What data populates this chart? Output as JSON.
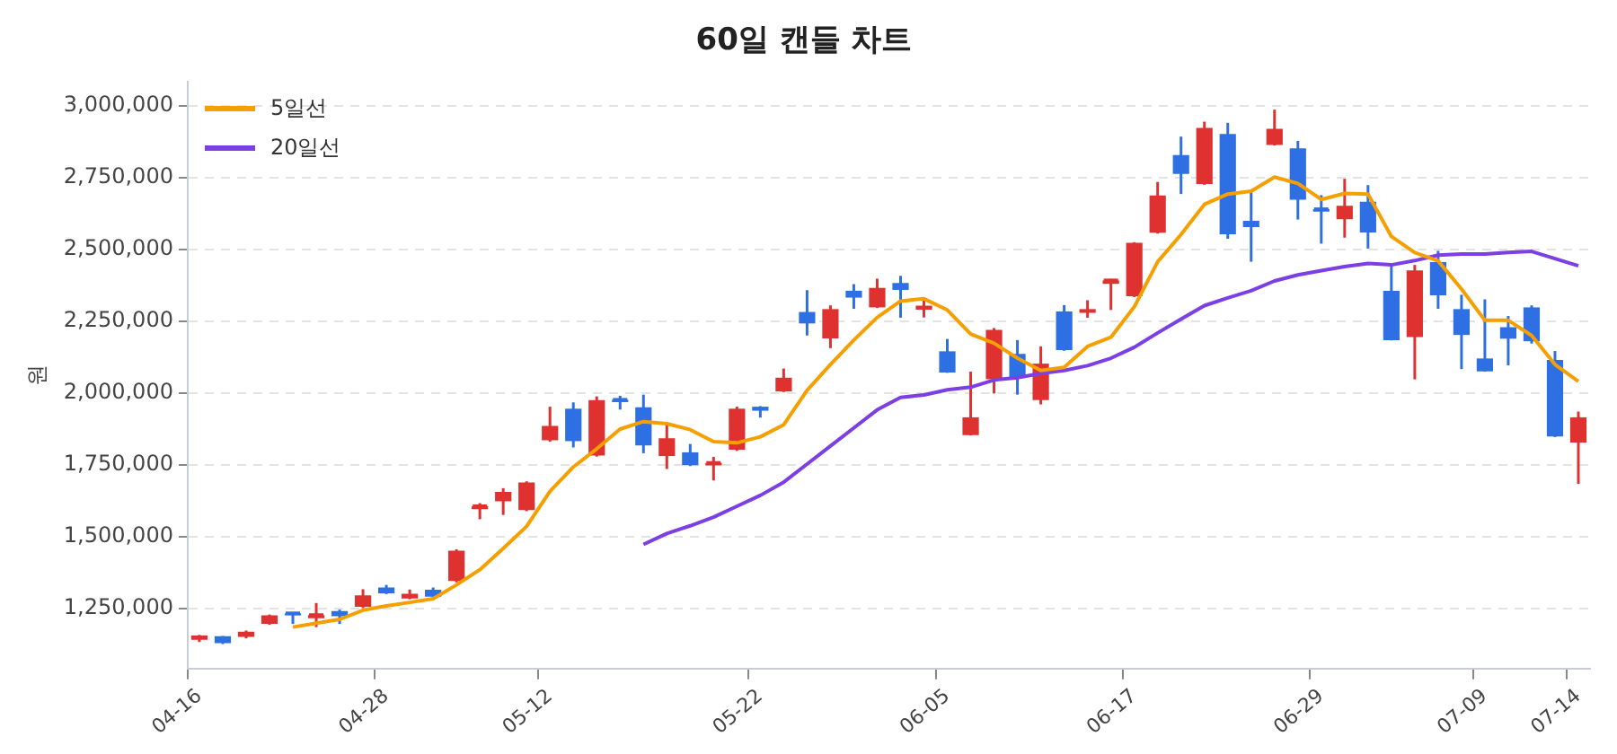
{
  "chart_data": {
    "type": "candlestick",
    "title": "60일 캔들 차트",
    "ylabel": "원",
    "categories": [
      "04-16",
      null,
      null,
      null,
      null,
      null,
      null,
      null,
      "04-28",
      null,
      null,
      null,
      null,
      null,
      null,
      "05-12",
      null,
      null,
      null,
      null,
      null,
      null,
      null,
      null,
      "05-22",
      null,
      null,
      null,
      null,
      null,
      null,
      null,
      "06-05",
      null,
      null,
      null,
      null,
      null,
      null,
      null,
      "06-17",
      null,
      null,
      null,
      null,
      null,
      null,
      null,
      "06-29",
      null,
      null,
      null,
      null,
      null,
      null,
      "07-09",
      null,
      null,
      null,
      "07-14"
    ],
    "ohlc": [
      [
        1140000,
        1157000,
        1132000,
        1155000
      ],
      [
        1152000,
        1153000,
        1125000,
        1128000
      ],
      [
        1150000,
        1172000,
        1145000,
        1168000
      ],
      [
        1195000,
        1228000,
        1192000,
        1225000
      ],
      [
        1232000,
        1233000,
        1195000,
        1225000
      ],
      [
        1215000,
        1268000,
        1184000,
        1226000
      ],
      [
        1240000,
        1245000,
        1195000,
        1222000
      ],
      [
        1255000,
        1316000,
        1250000,
        1295000
      ],
      [
        1322000,
        1331000,
        1299000,
        1302000
      ],
      [
        1284000,
        1315000,
        1281000,
        1300000
      ],
      [
        1314000,
        1322000,
        1287000,
        1290000
      ],
      [
        1345000,
        1455000,
        1340000,
        1450000
      ],
      [
        1595000,
        1616000,
        1560000,
        1605000
      ],
      [
        1622000,
        1668000,
        1575000,
        1655000
      ],
      [
        1592000,
        1692000,
        1588000,
        1688000
      ],
      [
        1835000,
        1952000,
        1830000,
        1885000
      ],
      [
        1945000,
        1967000,
        1810000,
        1832000
      ],
      [
        1782000,
        1988000,
        1778000,
        1975000
      ],
      [
        1976000,
        1990000,
        1942000,
        1968000
      ],
      [
        1950000,
        1994000,
        1790000,
        1817000
      ],
      [
        1780000,
        1889000,
        1735000,
        1842000
      ],
      [
        1793000,
        1822000,
        1745000,
        1748000
      ],
      [
        1747000,
        1777000,
        1695000,
        1756000
      ],
      [
        1802000,
        1952000,
        1798000,
        1945000
      ],
      [
        1952000,
        1954000,
        1914000,
        1938000
      ],
      [
        2005000,
        2085000,
        2003000,
        2053000
      ],
      [
        2282000,
        2358000,
        2200000,
        2242000
      ],
      [
        2190000,
        2305000,
        2156000,
        2292000
      ],
      [
        2356000,
        2379000,
        2293000,
        2332000
      ],
      [
        2298000,
        2398000,
        2296000,
        2366000
      ],
      [
        2383000,
        2408000,
        2262000,
        2359000
      ],
      [
        2290000,
        2325000,
        2263000,
        2304000
      ],
      [
        2145000,
        2188000,
        2070000,
        2071000
      ],
      [
        1853000,
        2074000,
        1852000,
        1915000
      ],
      [
        2048000,
        2226000,
        1998000,
        2220000
      ],
      [
        2136000,
        2184000,
        1994000,
        2055000
      ],
      [
        1975000,
        2162000,
        1960000,
        2102000
      ],
      [
        2284000,
        2306000,
        2147000,
        2149000
      ],
      [
        2279000,
        2323000,
        2262000,
        2292000
      ],
      [
        2380000,
        2397000,
        2289000,
        2392000
      ],
      [
        2337000,
        2525000,
        2334000,
        2523000
      ],
      [
        2558000,
        2735000,
        2555000,
        2688000
      ],
      [
        2829000,
        2893000,
        2693000,
        2763000
      ],
      [
        2728000,
        2945000,
        2725000,
        2923000
      ],
      [
        2902000,
        2941000,
        2537000,
        2553000
      ],
      [
        2600000,
        2699000,
        2457000,
        2578000
      ],
      [
        2864000,
        2987000,
        2862000,
        2920000
      ],
      [
        2852000,
        2878000,
        2604000,
        2673000
      ],
      [
        2640000,
        2689000,
        2520000,
        2632000
      ],
      [
        2605000,
        2746000,
        2541000,
        2652000
      ],
      [
        2666000,
        2724000,
        2503000,
        2559000
      ],
      [
        2356000,
        2446000,
        2183000,
        2184000
      ],
      [
        2195000,
        2446000,
        2047000,
        2427000
      ],
      [
        2456000,
        2495000,
        2293000,
        2340000
      ],
      [
        2292000,
        2342000,
        2083000,
        2202000
      ],
      [
        2120000,
        2326000,
        2074000,
        2075000
      ],
      [
        2229000,
        2268000,
        2096000,
        2189000
      ],
      [
        2298000,
        2305000,
        2172000,
        2180000
      ],
      [
        2115000,
        2146000,
        1846000,
        1848000
      ],
      [
        1827000,
        1935000,
        1683000,
        1915000
      ]
    ],
    "colors": [
      "#e03131",
      "#2f6fe4",
      "#e03131",
      "#e03131",
      "#2f6fe4",
      "#e03131",
      "#2f6fe4",
      "#e03131",
      "#2f6fe4",
      "#e03131",
      "#2f6fe4",
      "#e03131",
      "#e03131",
      "#e03131",
      "#e03131",
      "#e03131",
      "#2f6fe4",
      "#e03131",
      "#2f6fe4",
      "#2f6fe4",
      "#e03131",
      "#2f6fe4",
      "#e03131",
      "#e03131",
      "#2f6fe4",
      "#e03131",
      "#2f6fe4",
      "#e03131",
      "#2f6fe4",
      "#e03131",
      "#2f6fe4",
      "#e03131",
      "#2f6fe4",
      "#e03131",
      "#e03131",
      "#2f6fe4",
      "#e03131",
      "#2f6fe4",
      "#e03131",
      "#e03131",
      "#e03131",
      "#e03131",
      "#2f6fe4",
      "#e03131",
      "#2f6fe4",
      "#2f6fe4",
      "#e03131",
      "#2f6fe4",
      "#2f6fe4",
      "#e03131",
      "#2f6fe4",
      "#2f6fe4",
      "#e03131",
      "#2f6fe4",
      "#2f6fe4",
      "#2f6fe4",
      "#2f6fe4",
      "#2f6fe4",
      "#2f6fe4",
      "#e03131"
    ],
    "series": [
      {
        "name": "5일선",
        "type": "line",
        "color": "#f59f00",
        "values": [
          null,
          null,
          null,
          null,
          1184000,
          1198000,
          1211000,
          1243000,
          1258000,
          1270000,
          1283000,
          1331000,
          1384000,
          1458000,
          1535000,
          1657000,
          1742000,
          1805000,
          1874000,
          1900000,
          1893000,
          1872000,
          1830000,
          1826000,
          1847000,
          1889000,
          2009000,
          2099000,
          2184000,
          2263000,
          2320000,
          2328000,
          2289000,
          2205000,
          2173000,
          2121000,
          2078000,
          2089000,
          2162000,
          2194000,
          2300000,
          2457000,
          2552000,
          2657000,
          2693000,
          2703000,
          2752000,
          2730000,
          2674000,
          2695000,
          2693000,
          2545000,
          2489000,
          2460000,
          2362000,
          2253000,
          2253000,
          2200000,
          2099000,
          2040000
        ]
      },
      {
        "name": "20일선",
        "type": "line",
        "color": "#7b3fe4",
        "values": [
          null,
          null,
          null,
          null,
          null,
          null,
          null,
          null,
          null,
          null,
          null,
          null,
          null,
          null,
          null,
          null,
          null,
          null,
          null,
          1472000,
          1510000,
          1537000,
          1567000,
          1605000,
          1643000,
          1689000,
          1752000,
          1815000,
          1878000,
          1941000,
          1984000,
          1993000,
          2011000,
          2020000,
          2045000,
          2053000,
          2068000,
          2078000,
          2095000,
          2121000,
          2159000,
          2209000,
          2257000,
          2304000,
          2331000,
          2356000,
          2390000,
          2411000,
          2426000,
          2440000,
          2451000,
          2446000,
          2461000,
          2480000,
          2484000,
          2484000,
          2489000,
          2493000,
          2468000,
          2443000
        ]
      }
    ],
    "ylim": [
      1040000,
      3085000
    ],
    "yticks": [
      {
        "value": 1250000,
        "label": "1,250,000"
      },
      {
        "value": 1500000,
        "label": "1,500,000"
      },
      {
        "value": 1750000,
        "label": "1,750,000"
      },
      {
        "value": 2000000,
        "label": "2,000,000"
      },
      {
        "value": 2250000,
        "label": "2,250,000"
      },
      {
        "value": 2500000,
        "label": "2,500,000"
      },
      {
        "value": 2750000,
        "label": "2,750,000"
      },
      {
        "value": 3000000,
        "label": "3,000,000"
      }
    ],
    "grid": "y",
    "legend": "top left",
    "marker": "none",
    "line_style": "solid"
  }
}
